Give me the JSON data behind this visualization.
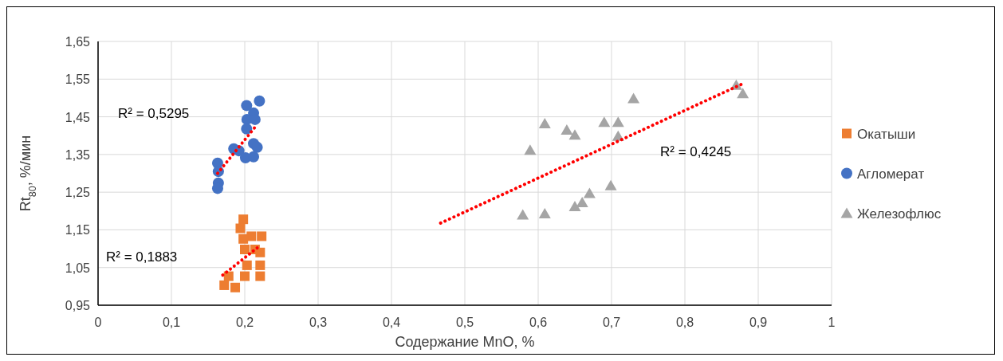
{
  "chart_data": {
    "type": "scatter",
    "xlabel": "Содержание MnO, %",
    "ylabel": "Rt$_{80}$, %/мин",
    "xlim": [
      0,
      1
    ],
    "xticks": [
      0,
      {
        "value": 0.1,
        "label": "0,1"
      },
      {
        "value": 0.2,
        "label": "0,2"
      },
      {
        "value": 0.3,
        "label": "0,3"
      },
      {
        "value": 0.4,
        "label": "0,4"
      },
      {
        "value": 0.5,
        "label": "0,5"
      },
      {
        "value": 0.6,
        "label": "0,6"
      },
      {
        "value": 0.7,
        "label": "0,7"
      },
      {
        "value": 0.8,
        "label": "0,8"
      },
      {
        "value": 0.9,
        "label": "0,9"
      },
      1
    ],
    "ylim": [
      0.95,
      1.65
    ],
    "yticks": [
      {
        "value": 0.95,
        "label": "0,95"
      },
      {
        "value": 1.05,
        "label": "1,05"
      },
      {
        "value": 1.15,
        "label": "1,15"
      },
      {
        "value": 1.25,
        "label": "1,25"
      },
      {
        "value": 1.35,
        "label": "1,35"
      },
      {
        "value": 1.45,
        "label": "1,45"
      },
      {
        "value": 1.55,
        "label": "1,55"
      },
      {
        "value": 1.65,
        "label": "1,65"
      }
    ],
    "grid": true,
    "legend": "right",
    "series": [
      {
        "name": "Окатыши",
        "color": "#ed7d31",
        "marker": "square",
        "x": [
          0.198,
          0.194,
          0.209,
          0.223,
          0.198,
          0.2,
          0.214,
          0.221,
          0.221,
          0.203,
          0.178,
          0.2,
          0.221,
          0.172,
          0.187
        ],
        "values": [
          1.178,
          1.154,
          1.133,
          1.133,
          1.126,
          1.098,
          1.098,
          1.09,
          1.056,
          1.056,
          1.027,
          1.027,
          1.027,
          1.003,
          0.997
        ]
      },
      {
        "name": "Агломерат",
        "color": "#4472c4",
        "marker": "circle",
        "x": [
          0.2025,
          0.22,
          0.212,
          0.203,
          0.214,
          0.2025,
          0.185,
          0.192,
          0.212,
          0.217,
          0.201,
          0.212,
          0.163,
          0.164,
          0.164,
          0.163
        ],
        "values": [
          1.48,
          1.492,
          1.46,
          1.443,
          1.443,
          1.418,
          1.365,
          1.36,
          1.379,
          1.369,
          1.341,
          1.344,
          1.327,
          1.305,
          1.274,
          1.26
        ]
      },
      {
        "name": "Железофлюс",
        "color": "#a5a5a5",
        "marker": "triangle",
        "x": [
          0.87,
          0.879,
          0.73,
          0.609,
          0.639,
          0.65,
          0.69,
          0.709,
          0.709,
          0.589,
          0.699,
          0.67,
          0.66,
          0.65,
          0.609,
          0.579
        ],
        "values": [
          1.534,
          1.512,
          1.499,
          1.432,
          1.415,
          1.402,
          1.436,
          1.436,
          1.399,
          1.362,
          1.268,
          1.247,
          1.223,
          1.212,
          1.193,
          1.19
        ]
      },
      {
        "type": "line",
        "color": "#ff0000",
        "line_style": "dotted",
        "x": [
          0.17,
          0.222
        ],
        "values": [
          1.03,
          1.11
        ]
      },
      {
        "type": "line",
        "color": "#ff0000",
        "line_style": "dotted",
        "x": [
          0.163,
          0.215
        ],
        "values": [
          1.3,
          1.425
        ]
      },
      {
        "type": "line",
        "color": "#ff0000",
        "line_style": "dotted",
        "x": [
          0.467,
          0.879
        ],
        "values": [
          1.168,
          1.538
        ]
      }
    ],
    "annotations": [
      "R² = 0,5295",
      "R² = 0,1883",
      "R² = 0,4245"
    ]
  }
}
